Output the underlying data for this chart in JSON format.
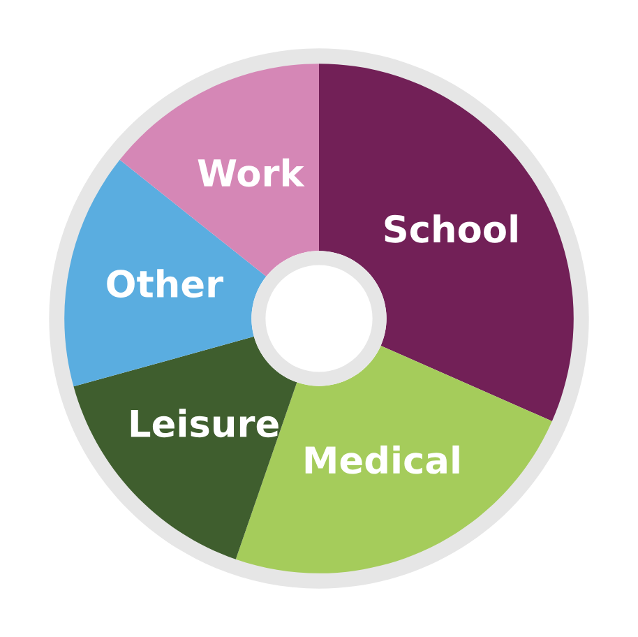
{
  "chart_data": {
    "type": "donut",
    "categories": [
      "School",
      "Medical",
      "Leisure",
      "Other",
      "Work"
    ],
    "values": [
      31.6,
      23.7,
      15.4,
      15.0,
      14.3
    ],
    "colors": [
      "#722057",
      "#a5cc5b",
      "#3f5e2e",
      "#5aade0",
      "#d587b6"
    ],
    "legend": false
  }
}
